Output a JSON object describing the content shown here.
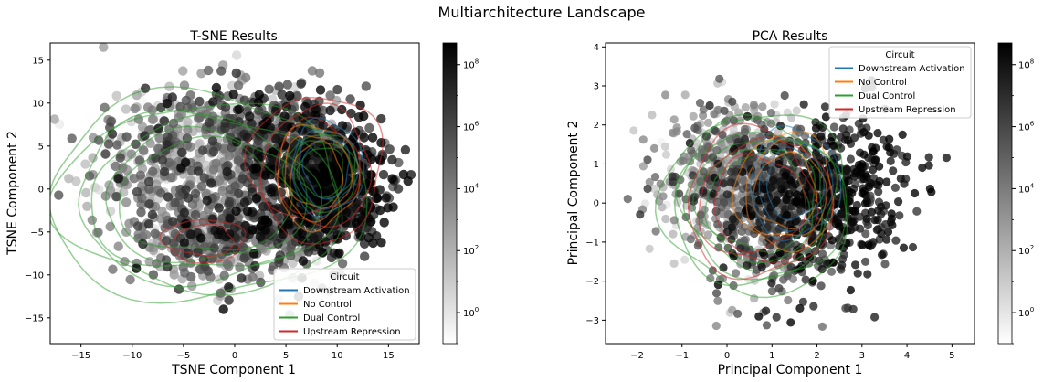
{
  "suptitle": "Multiarchitecture Landscape",
  "colors": {
    "Downstream Activation": "#1f77b4",
    "No Control": "#ff7f0e",
    "Dual Control": "#2ca02c",
    "Upstream Repression": "#d62728"
  },
  "chart_data": [
    {
      "type": "scatter",
      "title": "T-SNE Results",
      "xlabel": "TSNE Component 1",
      "ylabel": "TSNE Component 2",
      "xlim": [
        -18,
        18
      ],
      "ylim": [
        -18,
        17
      ],
      "xticks": [
        -15,
        -10,
        -5,
        0,
        5,
        10,
        15
      ],
      "yticks": [
        -15,
        -10,
        -5,
        0,
        5,
        10,
        15
      ],
      "legend_title": "Circuit",
      "legend_position": "lower-right",
      "legend": [
        "Downstream Activation",
        "No Control",
        "Dual Control",
        "Upstream Repression"
      ],
      "colorbar": {
        "scale": "log",
        "cmap": "gray_r",
        "ticks": [
          "10^0",
          "10^2",
          "10^4",
          "10^6",
          "10^8"
        ],
        "range_exp": [
          -1,
          8.7
        ]
      },
      "point_clusters": [
        {
          "cx": -6,
          "cy": 3,
          "sx": 4.5,
          "sy": 4.5,
          "n": 420,
          "z_mean": 3,
          "z_sd": 2.2
        },
        {
          "cx": 3,
          "cy": 6,
          "sx": 4,
          "sy": 3.5,
          "n": 380,
          "z_mean": 4.5,
          "z_sd": 2.2
        },
        {
          "cx": 8,
          "cy": 2,
          "sx": 3.2,
          "sy": 4,
          "n": 460,
          "z_mean": 7,
          "z_sd": 1.5
        },
        {
          "cx": 10,
          "cy": 0,
          "sx": 2.8,
          "sy": 3.2,
          "n": 260,
          "z_mean": 8,
          "z_sd": 0.9
        },
        {
          "cx": -3,
          "cy": -6,
          "sx": 3.5,
          "sy": 2.8,
          "n": 260,
          "z_mean": 3.5,
          "z_sd": 2
        },
        {
          "cx": 3,
          "cy": -5,
          "sx": 3.5,
          "sy": 3,
          "n": 280,
          "z_mean": 5,
          "z_sd": 2.2
        }
      ],
      "contours": {
        "Dual Control": [
          {
            "cx": -3,
            "cy": -1,
            "rx": 15.5,
            "ry": 12,
            "levels": 6
          },
          {
            "cx": 8.5,
            "cy": 2,
            "rx": 3.5,
            "ry": 4.5,
            "levels": 3
          }
        ],
        "Upstream Repression": [
          {
            "cx": 8,
            "cy": 2.5,
            "rx": 6.5,
            "ry": 8.5,
            "levels": 3
          },
          {
            "cx": -3,
            "cy": -6,
            "rx": 4,
            "ry": 2.5,
            "levels": 2
          }
        ],
        "No Control": [
          {
            "cx": 8,
            "cy": 1.5,
            "rx": 4,
            "ry": 6,
            "levels": 3
          }
        ],
        "Downstream Activation": [
          {
            "cx": 9,
            "cy": 2.5,
            "rx": 3.5,
            "ry": 5.5,
            "levels": 3
          }
        ]
      }
    },
    {
      "type": "scatter",
      "title": "PCA Results",
      "xlabel": "Principal Component 1",
      "ylabel": "Principal Component 2",
      "xlim": [
        -2.7,
        5.5
      ],
      "ylim": [
        -3.6,
        4.1
      ],
      "xticks": [
        -2,
        -1,
        0,
        1,
        2,
        3,
        4,
        5
      ],
      "yticks": [
        -3,
        -2,
        -1,
        0,
        1,
        2,
        3,
        4
      ],
      "legend_title": "Circuit",
      "legend_position": "upper-right",
      "legend": [
        "Downstream Activation",
        "No Control",
        "Dual Control",
        "Upstream Repression"
      ],
      "colorbar": {
        "scale": "log",
        "cmap": "gray_r",
        "ticks": [
          "10^0",
          "10^2",
          "10^4",
          "10^6",
          "10^8"
        ],
        "range_exp": [
          -1,
          8.7
        ]
      },
      "point_clusters": [
        {
          "cx": 0,
          "cy": 0.8,
          "sx": 0.7,
          "sy": 0.85,
          "n": 480,
          "z_mean": 3,
          "z_sd": 2
        },
        {
          "cx": 1,
          "cy": -0.2,
          "sx": 0.7,
          "sy": 1.0,
          "n": 520,
          "z_mean": 5,
          "z_sd": 2
        },
        {
          "cx": 2.2,
          "cy": 0.2,
          "sx": 0.7,
          "sy": 1.0,
          "n": 380,
          "z_mean": 7.5,
          "z_sd": 1
        },
        {
          "cx": 3.1,
          "cy": 0.5,
          "sx": 0.6,
          "sy": 0.9,
          "n": 110,
          "z_mean": 8,
          "z_sd": 0.7
        }
      ],
      "contours": {
        "Dual Control": [
          {
            "cx": 0.7,
            "cy": 0,
            "rx": 2.1,
            "ry": 2.3,
            "levels": 6
          }
        ],
        "Upstream Repression": [
          {
            "cx": 0.7,
            "cy": 0,
            "rx": 1.6,
            "ry": 1.9,
            "levels": 3
          }
        ],
        "No Control": [
          {
            "cx": 1.3,
            "cy": 0.3,
            "rx": 1.1,
            "ry": 1.5,
            "levels": 3
          }
        ],
        "Downstream Activation": [
          {
            "cx": 1.5,
            "cy": 0.5,
            "rx": 1.0,
            "ry": 1.4,
            "levels": 3
          }
        ]
      }
    }
  ]
}
